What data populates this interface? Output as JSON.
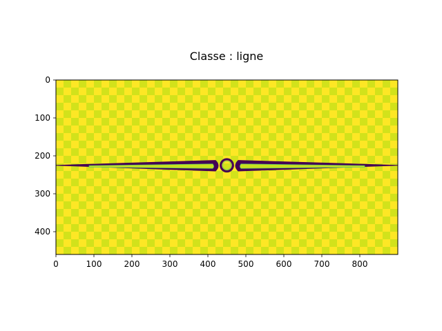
{
  "chart_data": {
    "type": "heatmap",
    "title": "Classe : ligne",
    "xlabel": "",
    "ylabel": "",
    "xlim": [
      0,
      900
    ],
    "ylim": [
      460,
      0
    ],
    "x_ticks": [
      0,
      100,
      200,
      300,
      400,
      500,
      600,
      700,
      800
    ],
    "y_ticks": [
      0,
      100,
      200,
      300,
      400
    ],
    "grid": false,
    "legend": "none",
    "colormap": "viridis",
    "colors": {
      "background_light": "#fde725",
      "background_dark": "#d2e21b",
      "shape_fill": "#440154",
      "shape_inner": "#5ec962",
      "shape_highlight": "#c8e020"
    },
    "image_description_shapes": [
      {
        "kind": "left-spike",
        "tip": [
          0,
          225
        ],
        "base_top": [
          420,
          212
        ],
        "base_bottom": [
          420,
          240
        ]
      },
      {
        "kind": "right-spike",
        "tip": [
          900,
          225
        ],
        "base_top": [
          480,
          212
        ],
        "base_bottom": [
          480,
          240
        ]
      },
      {
        "kind": "ring",
        "center": [
          450,
          225
        ],
        "radius": 16
      }
    ]
  }
}
